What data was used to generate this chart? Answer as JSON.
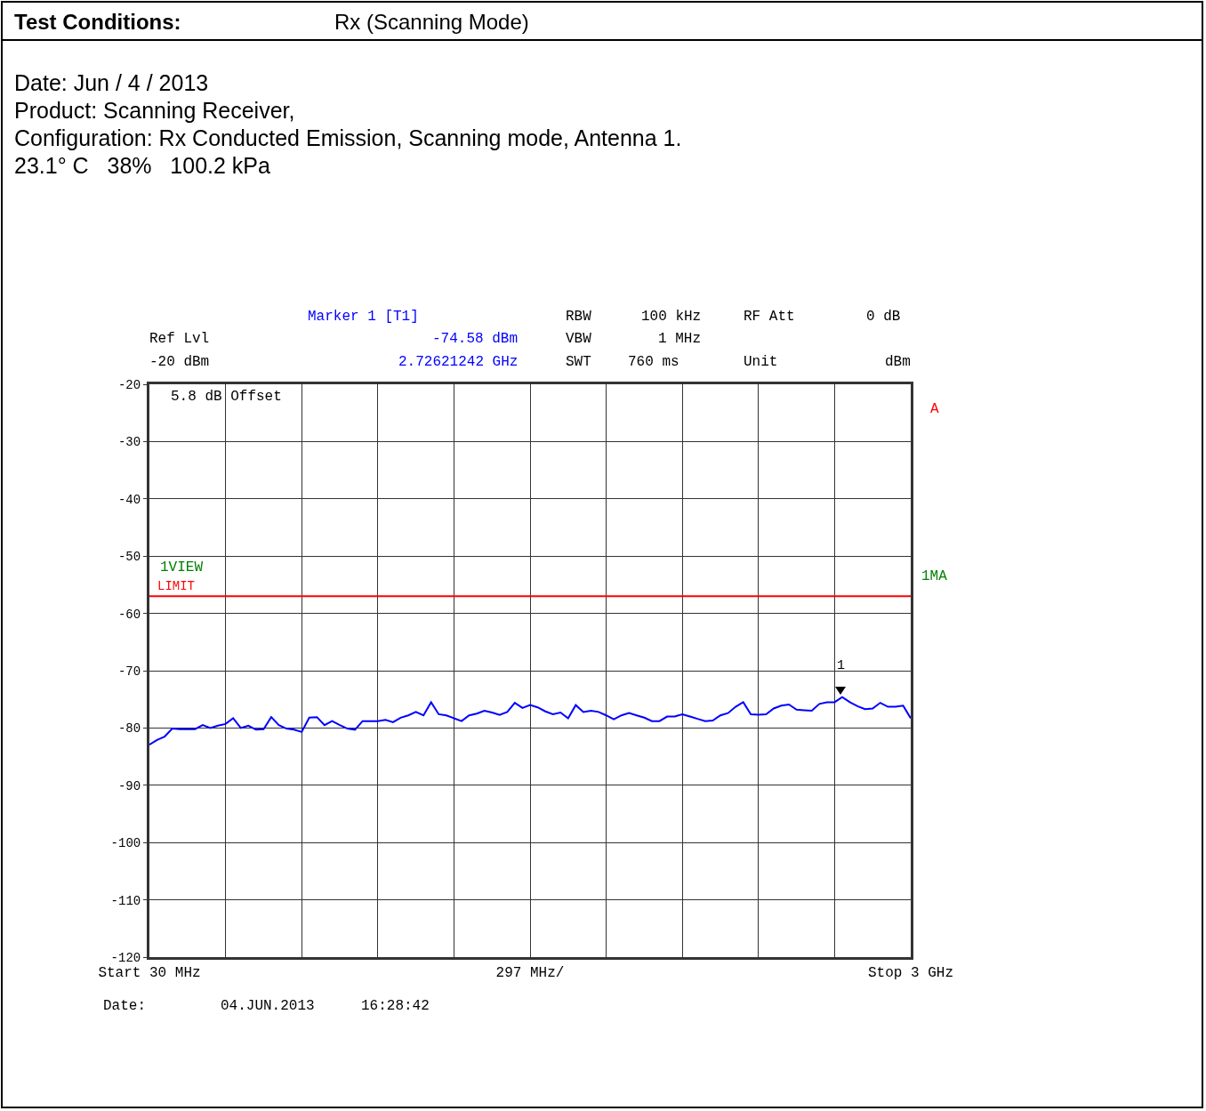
{
  "chart_data": {
    "type": "line",
    "title": "Test Conditions:",
    "subtitle": "Rx (Scanning Mode)",
    "categories": [
      "Start 30 MHz",
      null,
      null,
      null,
      null,
      null,
      null,
      null,
      null,
      null,
      null,
      null,
      null,
      null,
      null,
      null,
      null,
      null,
      null,
      null,
      null,
      null,
      null,
      null,
      null,
      null,
      null,
      null,
      null,
      null,
      null,
      null,
      null,
      null,
      null,
      null,
      null,
      null,
      null,
      null,
      null,
      null,
      null,
      null,
      null,
      null,
      null,
      null,
      null,
      null,
      "297 MHz/",
      null,
      null,
      null,
      null,
      null,
      null,
      null,
      null,
      null,
      null,
      null,
      null,
      null,
      null,
      null,
      null,
      null,
      null,
      null,
      null,
      null,
      null,
      null,
      null,
      null,
      null,
      null,
      null,
      null,
      null,
      null,
      null,
      null,
      null,
      null,
      null,
      null,
      null,
      null,
      null,
      null,
      null,
      null,
      null,
      null,
      null,
      null,
      null,
      null,
      "Stop 3 GHz"
    ],
    "series": [
      {
        "color": "#0000ff",
        "values": [
          -82.9,
          -82.1,
          -81.5,
          -80.1,
          -80.2,
          -80.2,
          -80.2,
          -79.5,
          -80.0,
          -79.6,
          -79.3,
          -78.3,
          -80.0,
          -79.6,
          -80.3,
          -80.2,
          -78.1,
          -79.5,
          -80.1,
          -80.3,
          -80.7,
          -78.2,
          -78.1,
          -79.5,
          -78.8,
          -79.5,
          -80.1,
          -80.3,
          -78.8,
          -78.8,
          -78.8,
          -78.6,
          -79.0,
          -78.2,
          -77.8,
          -77.2,
          -77.8,
          -75.5,
          -77.6,
          -77.8,
          -78.3,
          -78.8,
          -77.8,
          -77.5,
          -77.0,
          -77.3,
          -77.7,
          -77.2,
          -75.6,
          -76.5,
          -76.0,
          -76.4,
          -77.1,
          -77.6,
          -77.3,
          -78.3,
          -76.0,
          -77.2,
          -77.0,
          -77.2,
          -77.8,
          -78.5,
          -77.8,
          -77.4,
          -77.8,
          -78.2,
          -78.8,
          -78.8,
          -78.0,
          -78.0,
          -77.6,
          -78.0,
          -78.4,
          -78.8,
          -78.7,
          -77.8,
          -77.4,
          -76.3,
          -75.5,
          -77.6,
          -77.7,
          -77.6,
          -76.6,
          -76.1,
          -75.9,
          -76.8,
          -76.9,
          -77.0,
          -75.8,
          -75.5,
          -75.5,
          -74.6,
          -75.5,
          -76.2,
          -76.7,
          -76.6,
          -75.6,
          -76.3,
          -76.3,
          -76.1,
          -78.3
        ]
      }
    ],
    "ylim": [
      -120,
      -20
    ],
    "yticks": [
      -120,
      -110,
      -100,
      -90,
      -80,
      -70,
      -60,
      -50,
      -40,
      -30,
      -20
    ],
    "grid": true,
    "ref_lines": [
      {
        "axis": "y",
        "value": -57,
        "label": "LIMIT",
        "color": "#ff0000"
      }
    ],
    "annotations": [
      "Date: Jun / 4 / 2013",
      "Product: Scanning Receiver,",
      "Configuration: Rx Conducted Emission, Scanning mode, Antenna 1.",
      "23.1° C   38%   100.2 kPa",
      "Marker 1 [T1]",
      "-74.58 dBm",
      "2.72621242 GHz",
      "Ref Lvl",
      "-20 dBm",
      "RBW",
      "100 kHz",
      "VBW",
      "1 MHz",
      "SWT",
      "760 ms",
      "RF Att",
      "0 dB",
      "Unit",
      "dBm",
      "5.8 dB Offset",
      "A",
      "1VIEW",
      "1MA",
      "Date:",
      "04.JUN.2013",
      "16:28:42",
      "1"
    ]
  }
}
